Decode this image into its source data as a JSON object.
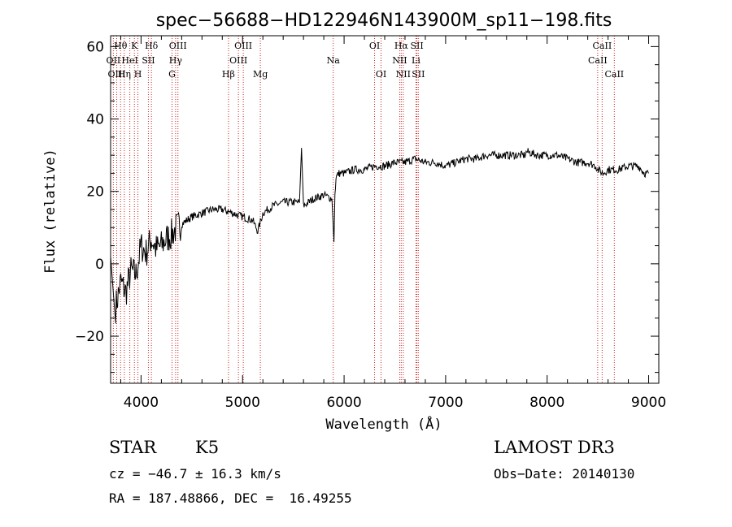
{
  "chart_data": {
    "type": "line",
    "title": "spec−56688−HD122946N143900M_sp11−198.fits",
    "xlabel": "Wavelength (Å)",
    "ylabel": "Flux (relative)",
    "xlim": [
      3700,
      9100
    ],
    "ylim": [
      -33,
      63
    ],
    "xticks": [
      4000,
      5000,
      6000,
      7000,
      8000,
      9000
    ],
    "yticks": [
      -20,
      0,
      20,
      40,
      60
    ],
    "x": [
      3700,
      3750,
      3800,
      3850,
      3900,
      3950,
      4000,
      4050,
      4100,
      4150,
      4200,
      4250,
      4300,
      4350,
      4400,
      4500,
      4600,
      4700,
      4800,
      4900,
      5000,
      5100,
      5150,
      5200,
      5300,
      5400,
      5500,
      5560,
      5580,
      5600,
      5700,
      5800,
      5880,
      5900,
      5910,
      5920,
      5950,
      6000,
      6100,
      6200,
      6300,
      6400,
      6500,
      6600,
      6700,
      6800,
      6900,
      7000,
      7100,
      7200,
      7300,
      7400,
      7500,
      7600,
      7700,
      7780,
      7800,
      7900,
      8000,
      8100,
      8200,
      8300,
      8400,
      8480,
      8500,
      8550,
      8600,
      8700,
      8800,
      8900,
      8960,
      9000
    ],
    "values": [
      2,
      -12,
      -5,
      -8,
      -2,
      -3,
      5,
      3,
      7,
      4,
      5,
      7,
      8,
      10,
      11,
      13,
      14,
      15,
      15,
      14,
      13,
      12,
      9,
      14,
      16,
      17,
      17,
      17,
      32,
      16,
      18,
      19,
      18,
      6,
      19,
      24,
      25,
      25,
      26,
      26,
      27,
      27,
      28,
      28,
      29,
      28,
      28,
      27,
      28,
      29,
      29,
      30,
      30,
      30,
      30,
      30,
      31,
      30,
      30,
      30,
      29,
      28,
      28,
      27,
      26,
      25,
      26,
      26,
      27,
      27,
      25,
      25
    ],
    "line_labels": [
      {
        "text": "Hθ",
        "x": 3798
      },
      {
        "text": "K",
        "x": 3934
      },
      {
        "text": "Hδ",
        "x": 4102
      },
      {
        "text": "OIII",
        "x": 4363
      },
      {
        "text": "OIII",
        "x": 5007
      },
      {
        "text": "OI",
        "x": 6300
      },
      {
        "text": "Hα",
        "x": 6563
      },
      {
        "text": "SII",
        "x": 6717
      },
      {
        "text": "CaII",
        "x": 8542
      },
      {
        "text": "OII",
        "x": 3727
      },
      {
        "text": "HeI",
        "x": 3889
      },
      {
        "text": "SII",
        "x": 4072
      },
      {
        "text": "Hγ",
        "x": 4340
      },
      {
        "text": "OIII",
        "x": 4959
      },
      {
        "text": "Na",
        "x": 5893
      },
      {
        "text": "NII",
        "x": 6548
      },
      {
        "text": "Li",
        "x": 6708
      },
      {
        "text": "CaII",
        "x": 8498
      },
      {
        "text": "OIII",
        "x": 3760
      },
      {
        "text": "Hη",
        "x": 3835
      },
      {
        "text": "H",
        "x": 3969
      },
      {
        "text": "G",
        "x": 4305
      },
      {
        "text": "Hβ",
        "x": 4861
      },
      {
        "text": "Mg",
        "x": 5175
      },
      {
        "text": "OI",
        "x": 6364
      },
      {
        "text": "NII",
        "x": 6583
      },
      {
        "text": "SII",
        "x": 6731
      },
      {
        "text": "CaII",
        "x": 8662
      }
    ]
  },
  "info": {
    "object_class": "STAR",
    "subclass": "K5",
    "survey": "LAMOST DR3",
    "cz": "cz = −46.7 ± 16.3 km/s",
    "obs_date": "Obs−Date: 20140130",
    "coords": "RA = 187.48866, DEC =  16.49255"
  }
}
